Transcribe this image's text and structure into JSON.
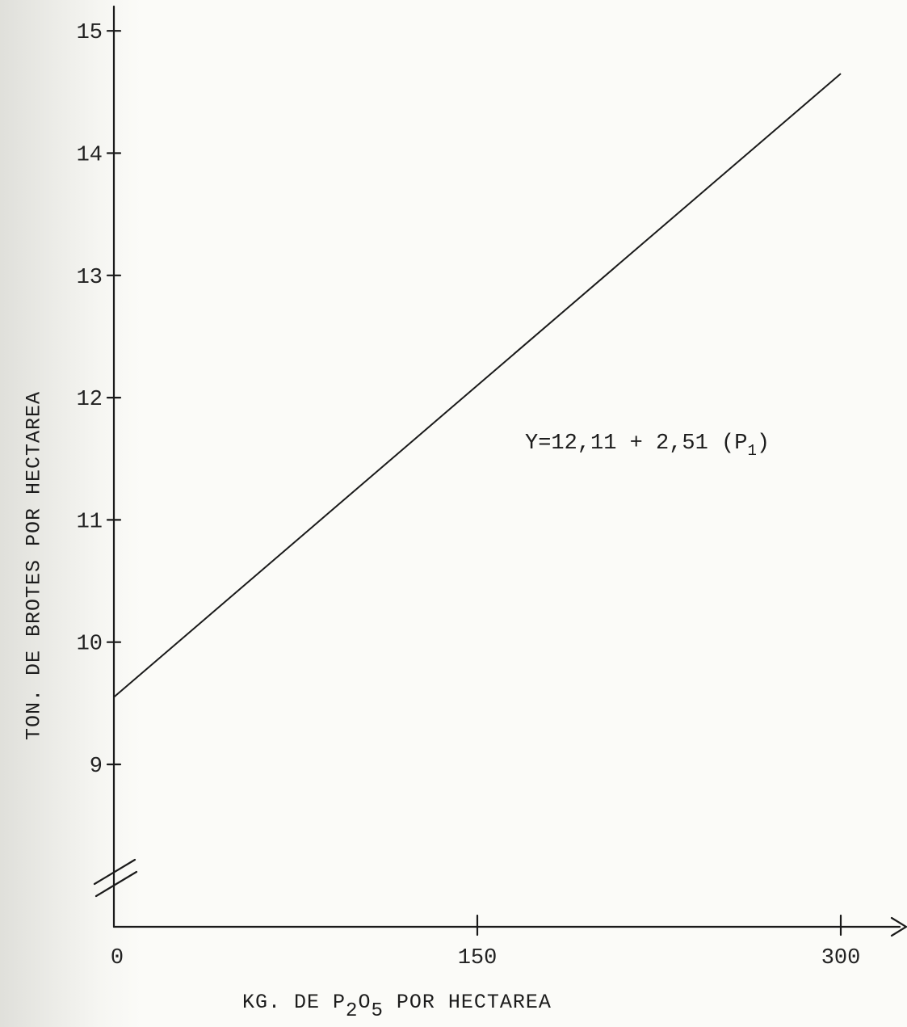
{
  "chart_data": {
    "type": "line",
    "title": "",
    "xlabel": {
      "before": "KG. DE P",
      "sub1": "2",
      "mid": "O",
      "sub2": "5",
      "after": " POR HECTAREA"
    },
    "ylabel": "TON. DE BROTES POR HECTAREA",
    "xlim": [
      0,
      320
    ],
    "ylim": [
      8.3,
      15.5
    ],
    "x_ticks": [
      0,
      150,
      300
    ],
    "y_ticks": [
      9,
      10,
      11,
      12,
      13,
      14,
      15
    ],
    "y_axis_break": true,
    "series": [
      {
        "x": [
          0,
          300
        ],
        "y": [
          9.55,
          14.65
        ]
      }
    ],
    "annotation": {
      "text_before": "Y=12,11 + 2,51 (P",
      "sub": "1",
      "text_after": ")"
    }
  }
}
